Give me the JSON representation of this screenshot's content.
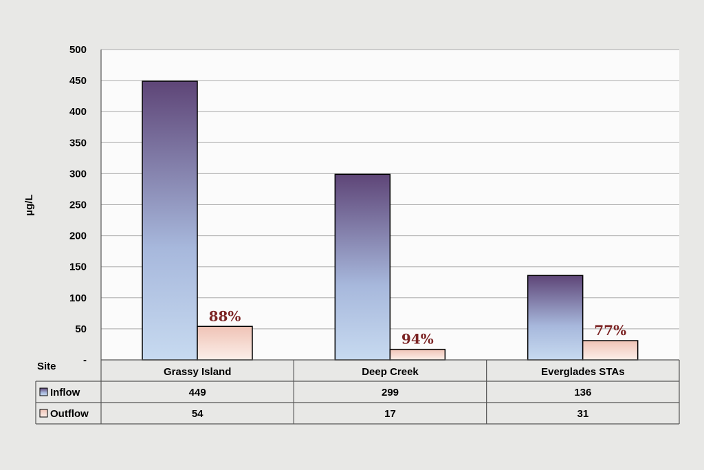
{
  "chart_data": {
    "type": "bar",
    "ylabel": "µg/L",
    "ylim": [
      0,
      500
    ],
    "yticks": [
      "-",
      "50",
      "100",
      "150",
      "200",
      "250",
      "300",
      "350",
      "400",
      "450",
      "500"
    ],
    "table_header": "Site",
    "categories": [
      "Grassy Island",
      "Deep Creek",
      "Everglades STAs"
    ],
    "series": [
      {
        "name": "Inflow",
        "values": [
          449,
          299,
          136
        ],
        "display": [
          "449",
          "299",
          "136"
        ],
        "color_top": "#5e4577",
        "color_bottom": "#b7cde8"
      },
      {
        "name": "Outflow",
        "values": [
          54,
          17,
          31
        ],
        "display": [
          "54",
          "17",
          "31"
        ],
        "color_top": "#f0c8bc",
        "color_bottom": "#fbeee8"
      }
    ],
    "annotations": [
      "88%",
      "94%",
      "77%"
    ],
    "annotation_color": "#7b2323",
    "grid": true,
    "plot_background": "#fbfbfb"
  }
}
